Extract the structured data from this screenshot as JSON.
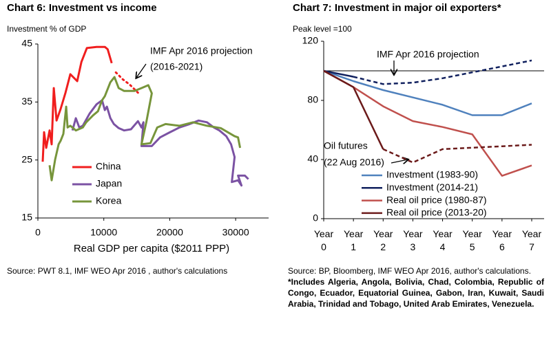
{
  "chart_data": [
    {
      "type": "line",
      "title": "Chart 6: Investment vs income",
      "y_label": "Investment % of GDP",
      "x_label": "Real GDP per capita ($2011 PPP)",
      "xlim": [
        0,
        35000
      ],
      "xticks": [
        0,
        10000,
        20000,
        30000
      ],
      "ylim": [
        15,
        45
      ],
      "yticks": [
        15,
        25,
        35,
        45
      ],
      "legend": "lower center",
      "annotations": [
        "IMF Apr 2016 projection",
        "(2016-2021)"
      ],
      "source": "Source: PWT 8.1, IMF WEO Apr 2016 , author's calculations",
      "series": [
        {
          "name": "China",
          "color": "#f01e1e",
          "x": [
            730,
            940,
            1260,
            1780,
            2090,
            2410,
            2830,
            3450,
            4190,
            4920,
            5970,
            6600,
            7430,
            8900,
            10160,
            10580,
            11200
          ],
          "values": [
            24.7,
            29.8,
            27.1,
            30.1,
            27.7,
            37.4,
            31.8,
            33.8,
            36.6,
            39.8,
            38.6,
            41.9,
            44.3,
            44.5,
            44.5,
            44.1,
            41.7
          ]
        },
        {
          "color": "#f01e1e",
          "line_style": "dotted",
          "x": [
            11830,
            12880,
            13930,
            15180
          ],
          "values": [
            40.1,
            38.9,
            38.0,
            36.6
          ]
        },
        {
          "name": "Japan",
          "color": "#7b52a3",
          "x": [
            5240,
            5760,
            6280,
            6810,
            7850,
            8900,
            9740,
            10160,
            10470,
            11000,
            11520,
            12250,
            13090,
            14130,
            15180,
            15710,
            16020,
            15710,
            17280,
            18530,
            19890,
            21460,
            23030,
            24390,
            25650,
            26700,
            27530,
            28580,
            29310,
            29840,
            29420,
            30360,
            30880,
            30360,
            31410,
            31930
          ],
          "values": [
            30.1,
            32.2,
            30.6,
            30.9,
            33.0,
            34.6,
            35.3,
            33.6,
            34.2,
            32.2,
            31.2,
            30.5,
            30.1,
            30.3,
            31.7,
            30.6,
            31.5,
            27.4,
            27.4,
            28.9,
            29.7,
            30.6,
            31.2,
            31.8,
            31.5,
            30.6,
            30.1,
            29.1,
            27.7,
            25.5,
            21.2,
            21.5,
            20.6,
            22.3,
            22.3,
            21.7
          ]
        },
        {
          "name": "Korea",
          "color": "#77953b",
          "x": [
            1780,
            2090,
            2620,
            3140,
            3450,
            3870,
            4290,
            4500,
            4920,
            5760,
            6810,
            7330,
            8380,
            9110,
            9740,
            10160,
            10990,
            11620,
            12250,
            13090,
            14660,
            15710,
            16750,
            17280,
            16440,
            15710,
            17070,
            18110,
            19370,
            21460,
            23560,
            25650,
            27740,
            29840,
            30360,
            30670
          ],
          "values": [
            24.1,
            21.5,
            25.1,
            27.7,
            28.3,
            29.5,
            34.2,
            30.6,
            30.9,
            30.1,
            30.6,
            31.5,
            32.7,
            33.4,
            35.3,
            36.0,
            38.4,
            39.3,
            37.4,
            36.9,
            36.9,
            37.4,
            37.9,
            36.5,
            31.5,
            27.7,
            27.9,
            30.6,
            31.2,
            30.9,
            31.5,
            30.9,
            30.5,
            29.1,
            28.9,
            27.1
          ]
        }
      ]
    },
    {
      "type": "line",
      "title": "Chart 7: Investment in major oil exporters*",
      "y_label": "Peak level =100",
      "categories": [
        "Year 0",
        "Year 1",
        "Year 2",
        "Year 3",
        "Year 4",
        "Year 5",
        "Year 6",
        "Year 7"
      ],
      "ylim": [
        0,
        120
      ],
      "yticks": [
        0,
        40,
        80,
        120
      ],
      "reference_line": 100,
      "legend": "lower right",
      "annotations": [
        "IMF Apr 2016 projection",
        "Oil futures",
        "(22 Aug 2016)"
      ],
      "source": "Source: BP, Bloomberg, IMF WEO Apr 2016, author's calculations.",
      "note": "*Includes Algeria, Angola, Bolivia, Chad, Colombia, Republic of Congo, Ecuador, Equatorial Guinea, Gabon, Iran, Kuwait, Saudi Arabia, Trinidad and Tobago, United Arab Emirates, Venezuela.",
      "series": [
        {
          "name": "Investment (1983-90)",
          "color": "#4f81bd",
          "values": [
            100,
            93,
            87,
            82,
            77,
            70,
            70,
            78
          ]
        },
        {
          "name": "Investment (2014-21)",
          "color": "#10205e",
          "dash_from": 1,
          "values": [
            100,
            96,
            91,
            92,
            95,
            99,
            103,
            107
          ]
        },
        {
          "name": "Real oil price (1980-87)",
          "color": "#c0504d",
          "values": [
            100,
            89,
            76,
            66,
            62,
            57,
            29,
            36
          ]
        },
        {
          "name": "Real oil price (2013-20)",
          "color": "#6b1a1a",
          "dash_from": 2,
          "values": [
            100,
            89,
            47,
            38,
            47,
            48,
            49,
            50
          ]
        }
      ]
    }
  ]
}
